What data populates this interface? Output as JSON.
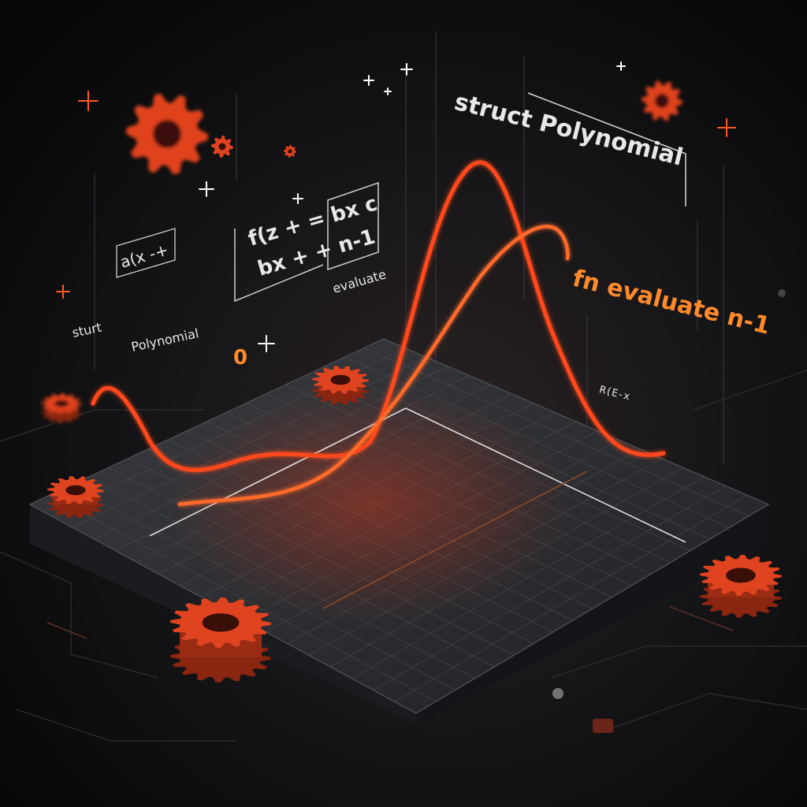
{
  "labels": {
    "struct_polynomial_main": "struct Polynomial",
    "fn_evaluate": "fn evaluate n-1",
    "formula_line1": "f(z + = bx c",
    "formula_line2": "bx + + n-1",
    "formula_small": "a(x -+",
    "evaluate_small": "evaluate",
    "struct_small": "sturt",
    "polynomial_small": "Polynomial",
    "zero_glyph": "0",
    "axis_label": "R(E-x"
  },
  "colors": {
    "background": "#0b0b0d",
    "platform_top": "#2a2b2f",
    "platform_side": "#17181b",
    "curve": "#ff4a1c",
    "gear": "#e0431f",
    "accent_orange": "#ff8a2a",
    "text": "#e8e8ea"
  },
  "icons": [
    "gear-icon",
    "sparkle-icon"
  ]
}
